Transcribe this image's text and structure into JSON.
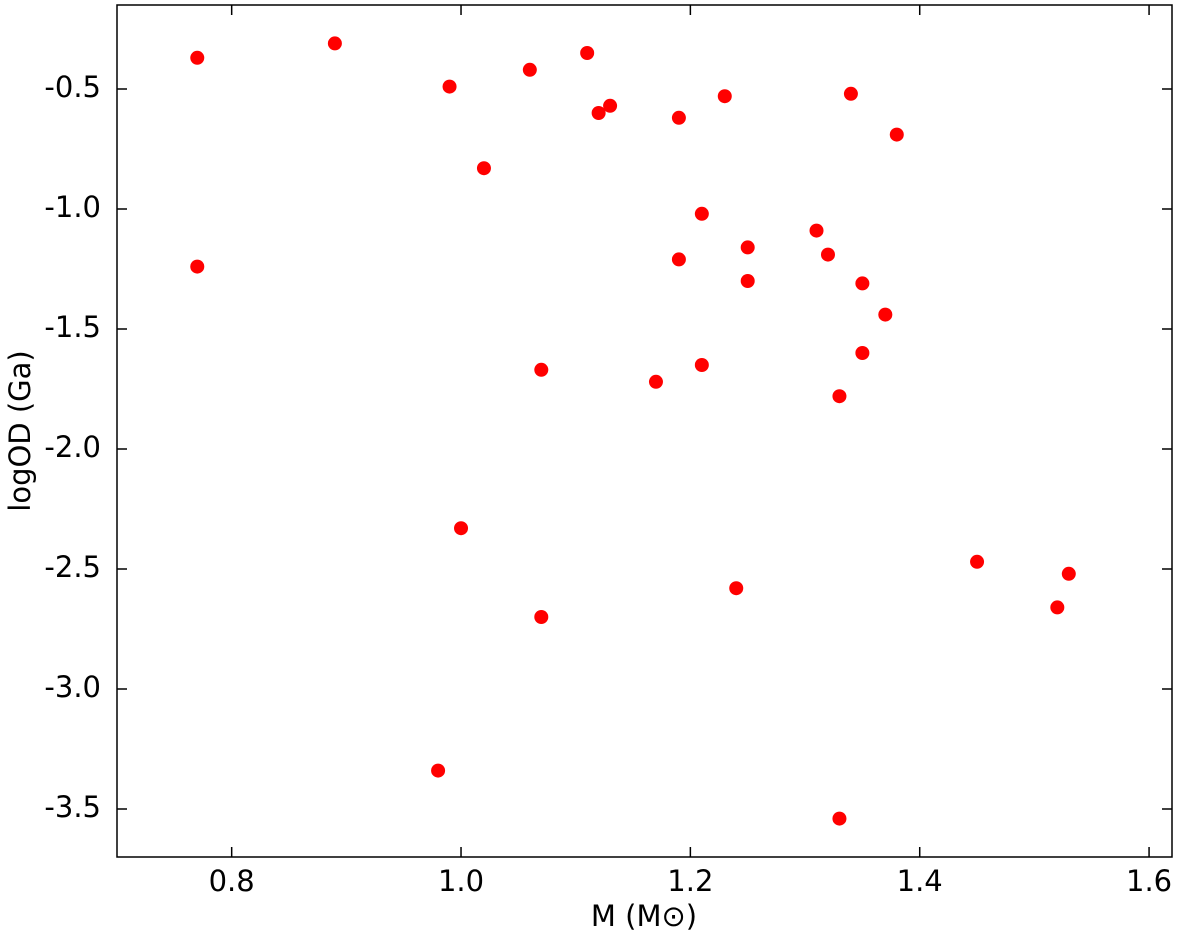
{
  "chart_data": {
    "type": "scatter",
    "xlabel": "M (M⊙)",
    "ylabel": "logOD (Ga)",
    "xlim": [
      0.7,
      1.62
    ],
    "ylim": [
      -3.7,
      -0.15
    ],
    "xticks": [
      0.8,
      {
        "value": 1.0,
        "label": "1.0"
      },
      1.2,
      1.4,
      1.6
    ],
    "yticks": [
      -0.5,
      {
        "value": -1.0,
        "label": "-1.0"
      },
      -1.5,
      {
        "value": -2.0,
        "label": "-2.0"
      },
      -2.5,
      {
        "value": -3.0,
        "label": "-3.0"
      },
      -3.5
    ],
    "color": "#ff0000",
    "x": [
      0.77,
      0.89,
      0.99,
      1.02,
      1.06,
      1.11,
      1.12,
      1.13,
      1.19,
      1.23,
      1.34,
      1.38,
      0.77,
      1.21,
      1.19,
      1.25,
      1.25,
      1.31,
      1.32,
      1.35,
      1.37,
      1.35,
      1.07,
      1.17,
      1.21,
      1.33,
      1.0,
      1.07,
      1.24,
      1.45,
      1.52,
      1.53,
      0.98,
      1.33
    ],
    "y": [
      -0.37,
      -0.31,
      -0.49,
      -0.83,
      -0.42,
      -0.35,
      -0.6,
      -0.57,
      -0.62,
      -0.53,
      -0.52,
      -0.69,
      -1.24,
      -1.02,
      -1.21,
      -1.16,
      -1.3,
      -1.09,
      -1.19,
      -1.31,
      -1.44,
      -1.6,
      -1.67,
      -1.72,
      -1.65,
      -1.78,
      -2.33,
      -2.7,
      -2.58,
      -2.47,
      -2.66,
      -2.52,
      -3.34,
      -3.54
    ]
  }
}
